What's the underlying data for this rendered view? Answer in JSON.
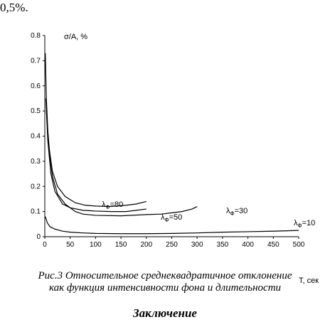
{
  "header": {
    "text": "0,5%."
  },
  "chart_data": {
    "type": "line",
    "y_label": "σ/A, %",
    "x_label": "T, сек",
    "xlim": [
      0,
      500
    ],
    "xticks": [
      0,
      50,
      100,
      150,
      200,
      250,
      300,
      350,
      400,
      450,
      500
    ],
    "ylim": [
      0,
      0.8
    ],
    "yticks": [
      0,
      0.1,
      0.2,
      0.3,
      0.4,
      0.5,
      0.6,
      0.7,
      0.8
    ],
    "color": "#000000",
    "series": [
      {
        "label": {
          "main": "λ",
          "sub": "Ф",
          "rest": "=80"
        },
        "x": [
          3,
          8,
          15,
          25,
          40,
          60,
          80,
          100,
          130,
          160,
          180,
          200
        ],
        "values": [
          0.5,
          0.36,
          0.26,
          0.2,
          0.16,
          0.135,
          0.125,
          0.122,
          0.12,
          0.125,
          0.13,
          0.14
        ]
      },
      {
        "label": {
          "main": "λ",
          "sub": "Ф",
          "rest": "=50"
        },
        "x": [
          2,
          6,
          12,
          20,
          35,
          50,
          75,
          100,
          130,
          160,
          180,
          200
        ],
        "values": [
          0.55,
          0.38,
          0.25,
          0.18,
          0.13,
          0.115,
          0.105,
          0.102,
          0.1,
          0.1,
          0.105,
          0.11
        ]
      },
      {
        "label": {
          "main": "λ",
          "sub": "Ф",
          "rest": "=30"
        },
        "x": [
          1,
          3,
          6,
          10,
          15,
          25,
          40,
          60,
          75,
          100,
          150,
          200,
          230,
          250,
          270,
          290,
          300
        ],
        "values": [
          0.73,
          0.55,
          0.42,
          0.32,
          0.24,
          0.17,
          0.13,
          0.1,
          0.09,
          0.085,
          0.083,
          0.088,
          0.09,
          0.095,
          0.1,
          0.11,
          0.12
        ]
      },
      {
        "label": {
          "main": "λ",
          "sub": "Ф",
          "rest": "=10"
        },
        "x": [
          1,
          5,
          10,
          20,
          35,
          50,
          75,
          100,
          150,
          200,
          250,
          300,
          350,
          400,
          450,
          500
        ],
        "values": [
          0.08,
          0.055,
          0.04,
          0.03,
          0.022,
          0.018,
          0.015,
          0.013,
          0.012,
          0.012,
          0.013,
          0.015,
          0.018,
          0.02,
          0.022,
          0.025
        ]
      }
    ]
  },
  "caption": [
    "Рис.3 Относительное среднеквадратичное отклонение",
    "как функция интенсивности фона и длительности"
  ],
  "section_title": "Заключение"
}
